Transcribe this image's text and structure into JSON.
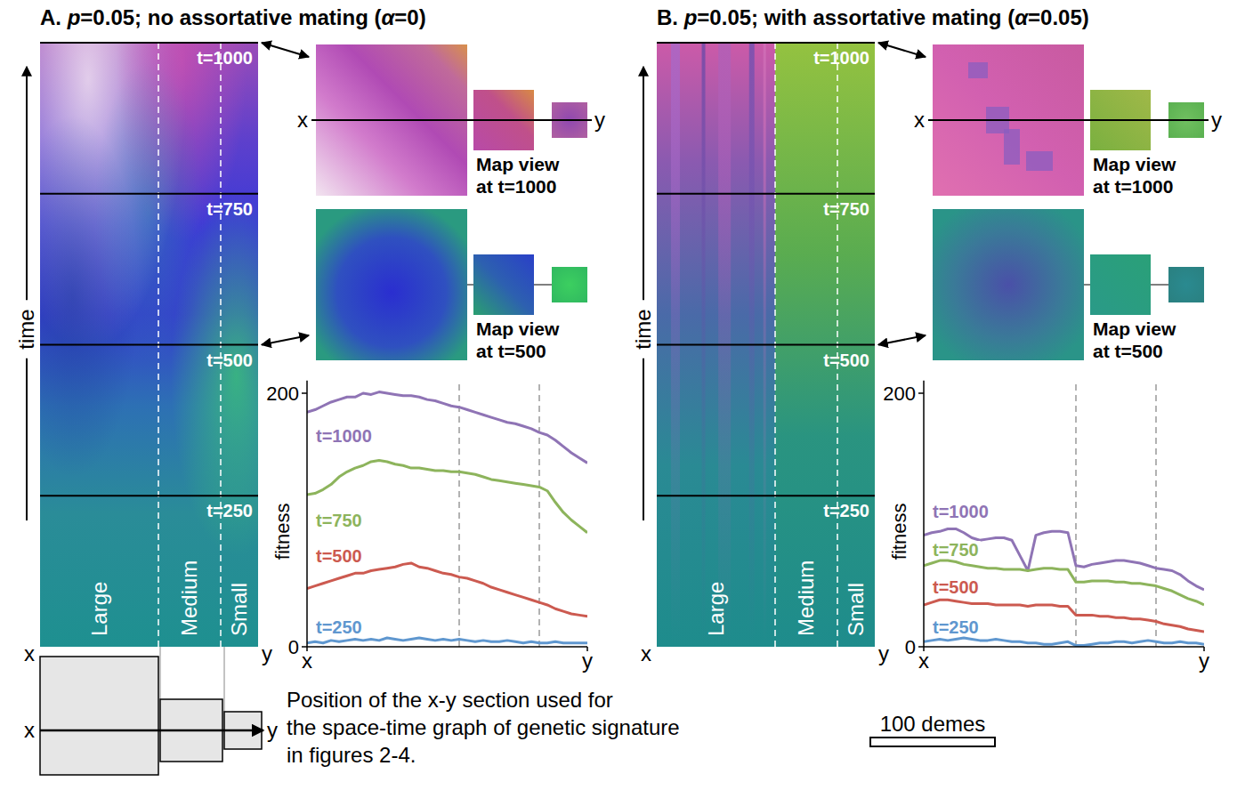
{
  "panels": [
    {
      "title": "A. p=0.05; no assortative mating (α=0)",
      "space_time": {
        "time_label": "time",
        "tlim": [
          0,
          1000
        ],
        "time_marks": [
          {
            "value": 250,
            "label": "t=250"
          },
          {
            "value": 500,
            "label": "t=500"
          },
          {
            "value": 750,
            "label": "t=750"
          },
          {
            "value": 1000,
            "label": "t=1000"
          }
        ],
        "regions": [
          "Large",
          "Medium",
          "Small"
        ],
        "region_bounds": [
          0,
          95,
          145,
          175
        ],
        "ends": [
          "x",
          "y"
        ]
      },
      "map_views": [
        {
          "time": 1000,
          "caption": [
            "Map view",
            "at t=1000"
          ]
        },
        {
          "time": 500,
          "caption": [
            "Map view",
            "at t=500"
          ]
        }
      ]
    },
    {
      "title": "B. p=0.05; with assortative mating (α=0.05)",
      "space_time": {
        "time_label": "time",
        "tlim": [
          0,
          1000
        ],
        "time_marks": [
          {
            "value": 250,
            "label": "t=250"
          },
          {
            "value": 500,
            "label": "t=500"
          },
          {
            "value": 750,
            "label": "t=750"
          },
          {
            "value": 1000,
            "label": "t=1000"
          }
        ],
        "regions": [
          "Large",
          "Medium",
          "Small"
        ],
        "region_bounds": [
          0,
          95,
          145,
          175
        ],
        "ends": [
          "x",
          "y"
        ]
      },
      "map_views": [
        {
          "time": 1000,
          "caption": [
            "Map view",
            "at t=1000"
          ]
        },
        {
          "time": 500,
          "caption": [
            "Map view",
            "at t=500"
          ]
        }
      ]
    }
  ],
  "chart_data": [
    {
      "type": "line",
      "y_label": "fitness",
      "x": [
        0,
        5,
        10,
        15,
        20,
        25,
        30,
        35,
        40,
        45,
        50,
        55,
        60,
        65,
        70,
        75,
        80,
        85,
        90,
        95,
        100,
        105,
        110,
        115,
        120,
        125,
        130,
        135,
        140,
        145,
        150,
        155,
        160,
        165,
        170,
        175
      ],
      "xlim": [
        0,
        175
      ],
      "xticks": [
        {
          "value": 0,
          "label": "x"
        },
        {
          "value": 175,
          "label": "y"
        }
      ],
      "ylim": [
        0,
        210
      ],
      "yticks": [
        0,
        200
      ],
      "series": [
        {
          "name": "t=1000",
          "color": "#8f74b5",
          "values": [
            185,
            187,
            190,
            193,
            195,
            197,
            197,
            200,
            199,
            201,
            200,
            199,
            198,
            198,
            197,
            195,
            194,
            192,
            190,
            189,
            187,
            185,
            183,
            181,
            179,
            177,
            176,
            174,
            172,
            169,
            167,
            163,
            158,
            153,
            149,
            145
          ]
        },
        {
          "name": "t=750",
          "color": "#8db45c",
          "values": [
            120,
            121,
            124,
            128,
            134,
            138,
            141,
            143,
            146,
            147,
            146,
            144,
            143,
            141,
            141,
            140,
            139,
            139,
            138,
            138,
            137,
            136,
            134,
            132,
            131,
            130,
            129,
            128,
            127,
            126,
            123,
            114,
            106,
            100,
            95,
            90
          ]
        },
        {
          "name": "t=500",
          "color": "#cc5a50",
          "values": [
            46,
            48,
            50,
            52,
            54,
            56,
            58,
            58,
            60,
            61,
            62,
            63,
            65,
            66,
            63,
            62,
            60,
            58,
            57,
            55,
            54,
            52,
            50,
            47,
            45,
            43,
            41,
            39,
            37,
            35,
            33,
            30,
            28,
            26,
            25,
            24
          ]
        },
        {
          "name": "t=250",
          "color": "#5f97cf",
          "values": [
            3,
            4,
            3,
            5,
            4,
            5,
            6,
            5,
            6,
            5,
            7,
            6,
            5,
            6,
            7,
            6,
            5,
            6,
            5,
            6,
            5,
            4,
            5,
            4,
            4,
            5,
            4,
            3,
            4,
            3,
            3,
            4,
            3,
            3,
            3,
            3
          ]
        }
      ]
    },
    {
      "type": "line",
      "y_label": "fitness",
      "x": [
        0,
        5,
        10,
        15,
        20,
        25,
        30,
        35,
        40,
        45,
        50,
        55,
        60,
        65,
        70,
        75,
        80,
        85,
        90,
        95,
        100,
        105,
        110,
        115,
        120,
        125,
        130,
        135,
        140,
        145,
        150,
        155,
        160,
        165,
        170,
        175
      ],
      "xlim": [
        0,
        175
      ],
      "xticks": [
        {
          "value": 0,
          "label": "x"
        },
        {
          "value": 175,
          "label": "y"
        }
      ],
      "ylim": [
        0,
        210
      ],
      "yticks": [
        0,
        200
      ],
      "series": [
        {
          "name": "t=1000",
          "color": "#8f74b5",
          "values": [
            88,
            90,
            91,
            93,
            93,
            90,
            86,
            84,
            85,
            86,
            86,
            84,
            72,
            60,
            88,
            90,
            91,
            91,
            90,
            64,
            63,
            65,
            66,
            67,
            68,
            68,
            67,
            66,
            64,
            62,
            61,
            60,
            57,
            52,
            48,
            45
          ]
        },
        {
          "name": "t=750",
          "color": "#8db45c",
          "values": [
            64,
            66,
            68,
            68,
            67,
            65,
            64,
            63,
            62,
            62,
            61,
            61,
            61,
            60,
            61,
            62,
            62,
            61,
            61,
            51,
            51,
            52,
            52,
            52,
            51,
            51,
            50,
            50,
            49,
            48,
            46,
            44,
            41,
            38,
            36,
            33
          ]
        },
        {
          "name": "t=500",
          "color": "#cc5a50",
          "values": [
            33,
            35,
            37,
            37,
            36,
            35,
            34,
            34,
            34,
            33,
            33,
            33,
            33,
            32,
            33,
            33,
            33,
            32,
            32,
            25,
            25,
            25,
            24,
            24,
            23,
            23,
            22,
            22,
            21,
            20,
            18,
            17,
            16,
            14,
            13,
            12
          ]
        },
        {
          "name": "t=250",
          "color": "#5f97cf",
          "values": [
            4,
            5,
            6,
            5,
            6,
            7,
            6,
            5,
            5,
            6,
            5,
            4,
            4,
            3,
            3,
            2,
            2,
            3,
            4,
            1,
            1,
            2,
            3,
            3,
            4,
            4,
            3,
            4,
            5,
            4,
            3,
            3,
            4,
            3,
            3,
            2
          ]
        }
      ]
    }
  ],
  "footer": {
    "section_note": [
      "Position of the x-y section used for",
      "the space-time graph of genetic signature",
      "in figures 2-4."
    ],
    "ends": [
      "x",
      "y"
    ],
    "scale_bar": {
      "value": 100,
      "label": "100 demes"
    }
  }
}
